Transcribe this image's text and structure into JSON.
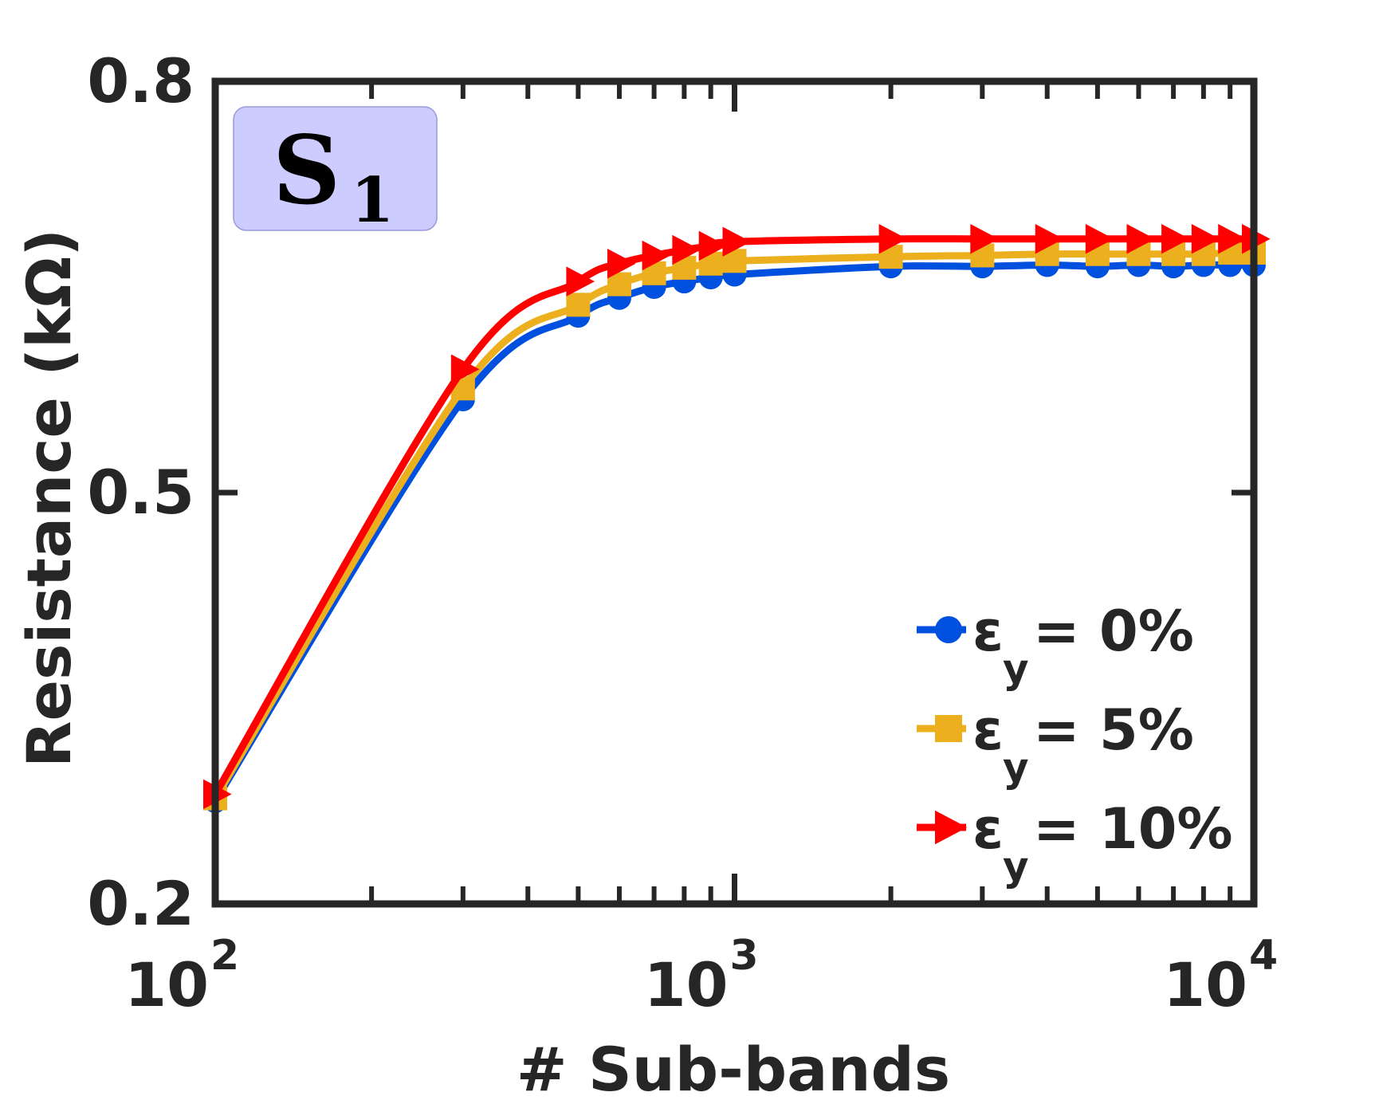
{
  "panel_label": {
    "main": "S",
    "sub": "1"
  },
  "chart_data": {
    "type": "line",
    "x_scale": "log",
    "xlabel": "# Sub-bands",
    "ylabel": "Resistance (kΩ)",
    "xlim": [
      100,
      10000
    ],
    "ylim": [
      0.2,
      0.8
    ],
    "x_ticks": [
      {
        "value": 100,
        "base": "10",
        "exp": "2"
      },
      {
        "value": 1000,
        "base": "10",
        "exp": "3"
      },
      {
        "value": 10000,
        "base": "10",
        "exp": "4"
      }
    ],
    "y_ticks": [
      {
        "value": 0.2,
        "label": "0.2"
      },
      {
        "value": 0.5,
        "label": "0.5"
      },
      {
        "value": 0.8,
        "label": "0.8"
      }
    ],
    "x": [
      100,
      300,
      500,
      600,
      700,
      800,
      900,
      1000,
      2000,
      3000,
      4000,
      5000,
      6000,
      7000,
      8000,
      9000,
      10000
    ],
    "series": [
      {
        "name": "εy = 0%",
        "legend_main": "ε",
        "legend_sub": "y",
        "legend_rest": "= 0%",
        "color": "#0050e0",
        "marker": "circle",
        "values": [
          0.275,
          0.568,
          0.629,
          0.642,
          0.65,
          0.654,
          0.657,
          0.659,
          0.665,
          0.665,
          0.666,
          0.665,
          0.666,
          0.665,
          0.666,
          0.666,
          0.666
        ]
      },
      {
        "name": "εy = 5%",
        "legend_main": "ε",
        "legend_sub": "y",
        "legend_rest": "= 5%",
        "color": "#ecb01f",
        "marker": "square",
        "values": [
          0.277,
          0.576,
          0.637,
          0.652,
          0.66,
          0.664,
          0.667,
          0.669,
          0.672,
          0.673,
          0.674,
          0.674,
          0.674,
          0.674,
          0.674,
          0.675,
          0.675
        ]
      },
      {
        "name": "εy = 10%",
        "legend_main": "ε",
        "legend_sub": "y",
        "legend_rest": "= 10%",
        "color": "#ff0000",
        "marker": "triangle-right",
        "values": [
          0.28,
          0.59,
          0.654,
          0.667,
          0.673,
          0.677,
          0.68,
          0.683,
          0.685,
          0.685,
          0.685,
          0.685,
          0.685,
          0.685,
          0.685,
          0.685,
          0.685
        ]
      }
    ],
    "legend_position": "bottom-right"
  }
}
